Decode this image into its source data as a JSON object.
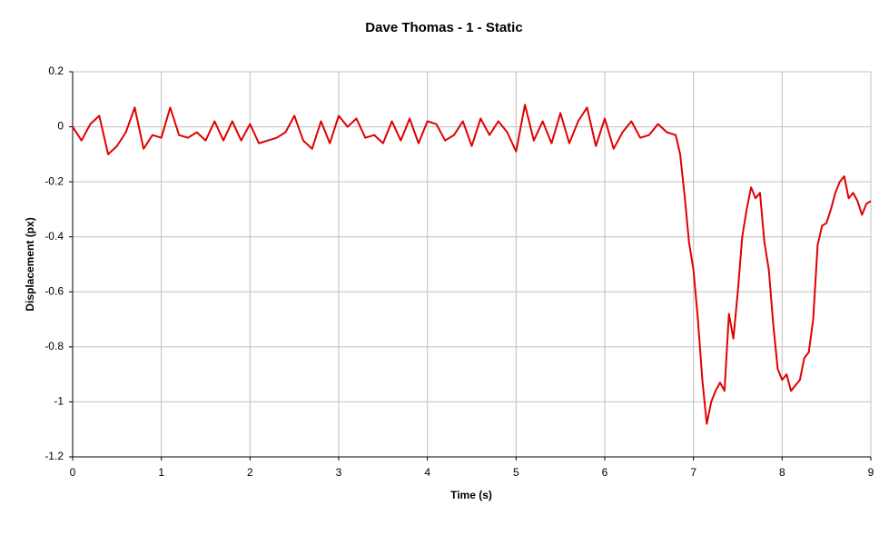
{
  "chart_data": {
    "type": "line",
    "title": "Dave Thomas - 1 - Static",
    "x_label": "Time (s)",
    "y_label": "Displacement (px)",
    "x": [
      0,
      0.1,
      0.2,
      0.3,
      0.4,
      0.5,
      0.6,
      0.7,
      0.8,
      0.9,
      1.0,
      1.1,
      1.2,
      1.3,
      1.4,
      1.5,
      1.6,
      1.7,
      1.8,
      1.9,
      2.0,
      2.1,
      2.2,
      2.3,
      2.4,
      2.5,
      2.6,
      2.7,
      2.8,
      2.9,
      3.0,
      3.1,
      3.2,
      3.3,
      3.4,
      3.5,
      3.6,
      3.7,
      3.8,
      3.9,
      4.0,
      4.1,
      4.2,
      4.3,
      4.4,
      4.5,
      4.6,
      4.7,
      4.8,
      4.9,
      5.0,
      5.1,
      5.2,
      5.3,
      5.4,
      5.5,
      5.6,
      5.7,
      5.8,
      5.9,
      6.0,
      6.1,
      6.2,
      6.3,
      6.4,
      6.5,
      6.6,
      6.7,
      6.8,
      6.85,
      6.9,
      6.95,
      7.0,
      7.05,
      7.1,
      7.15,
      7.2,
      7.25,
      7.3,
      7.35,
      7.4,
      7.45,
      7.5,
      7.55,
      7.6,
      7.65,
      7.7,
      7.75,
      7.8,
      7.85,
      7.9,
      7.95,
      8.0,
      8.05,
      8.1,
      8.15,
      8.2,
      8.25,
      8.3,
      8.35,
      8.4,
      8.45,
      8.5,
      8.55,
      8.6,
      8.65,
      8.7,
      8.75,
      8.8,
      8.85,
      8.9,
      8.95,
      9.0
    ],
    "series": [
      {
        "name": "Displacement",
        "color": "#e00000",
        "values": [
          0,
          -0.05,
          0.01,
          0.04,
          -0.1,
          -0.07,
          -0.02,
          0.07,
          -0.08,
          -0.03,
          -0.04,
          0.07,
          -0.03,
          -0.04,
          -0.02,
          -0.05,
          0.02,
          -0.05,
          0.02,
          -0.05,
          0.01,
          -0.06,
          -0.05,
          -0.04,
          -0.02,
          0.04,
          -0.05,
          -0.08,
          0.02,
          -0.06,
          0.04,
          0,
          0.03,
          -0.04,
          -0.03,
          -0.06,
          0.02,
          -0.05,
          0.03,
          -0.06,
          0.02,
          0.01,
          -0.05,
          -0.03,
          0.02,
          -0.07,
          0.03,
          -0.03,
          0.02,
          -0.02,
          -0.09,
          0.08,
          -0.05,
          0.02,
          -0.06,
          0.05,
          -0.06,
          0.02,
          0.07,
          -0.07,
          0.03,
          -0.08,
          -0.02,
          0.02,
          -0.04,
          -0.03,
          0.01,
          -0.02,
          -0.03,
          -0.1,
          -0.25,
          -0.42,
          -0.52,
          -0.7,
          -0.92,
          -1.08,
          -1.0,
          -0.96,
          -0.93,
          -0.96,
          -0.68,
          -0.77,
          -0.6,
          -0.4,
          -0.3,
          -0.22,
          -0.26,
          -0.24,
          -0.42,
          -0.52,
          -0.72,
          -0.88,
          -0.92,
          -0.9,
          -0.96,
          -0.94,
          -0.92,
          -0.84,
          -0.82,
          -0.7,
          -0.43,
          -0.36,
          -0.35,
          -0.3,
          -0.24,
          -0.2,
          -0.18,
          -0.26,
          -0.24,
          -0.27,
          -0.32,
          -0.28,
          -0.27
        ]
      }
    ],
    "xlim": [
      0,
      9
    ],
    "xticks": [
      0,
      1,
      2,
      3,
      4,
      5,
      6,
      7,
      8,
      9
    ],
    "ylim": [
      -1.2,
      0.2
    ],
    "yticks": [
      -1.2,
      -1,
      -0.8,
      -0.6,
      -0.4,
      -0.2,
      0,
      0.2
    ],
    "grid": true
  }
}
